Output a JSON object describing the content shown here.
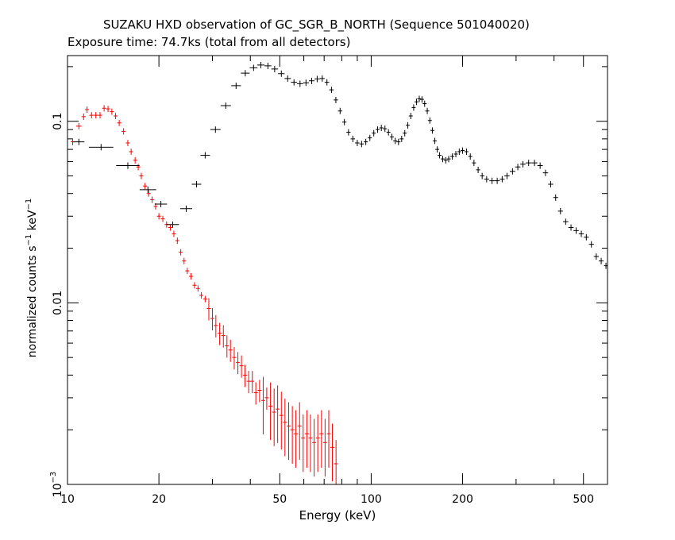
{
  "chart_data": {
    "type": "scatter",
    "title": "SUZAKU HXD observation of GC_SGR_B_NORTH (Sequence 501040020)",
    "subtitle": "Exposure time: 74.7ks (total from all detectors)",
    "xlabel": "Energy (keV)",
    "ylabel_text": "normalized counts s",
    "ylabel_exp1": "−1",
    "ylabel_mid": " keV",
    "ylabel_exp2": "−1",
    "xscale": "log",
    "yscale": "log",
    "xlim": [
      10,
      600
    ],
    "ylim": [
      0.001,
      0.23
    ],
    "x_ticks": [
      {
        "value": 10,
        "label": "10"
      },
      {
        "value": 20,
        "label": "20"
      },
      {
        "value": 50,
        "label": "50"
      },
      {
        "value": 100,
        "label": "100"
      },
      {
        "value": 200,
        "label": "200"
      },
      {
        "value": 500,
        "label": "500"
      }
    ],
    "y_ticks": [
      {
        "value": 0.1,
        "label": "0.1"
      },
      {
        "value": 0.01,
        "label": "0.01"
      },
      {
        "value": 0.001,
        "label": "10",
        "exp": "−3"
      }
    ],
    "series": [
      {
        "color": "#ff0000",
        "points": [
          [
            10.4,
            0.077
          ],
          [
            10.9,
            0.094
          ],
          [
            11.3,
            0.106
          ],
          [
            11.6,
            0.116
          ],
          [
            12.0,
            0.108
          ],
          [
            12.4,
            0.108
          ],
          [
            12.8,
            0.108
          ],
          [
            13.2,
            0.118
          ],
          [
            13.6,
            0.117
          ],
          [
            14.0,
            0.113
          ],
          [
            14.4,
            0.107
          ],
          [
            14.8,
            0.098
          ],
          [
            15.3,
            0.088
          ],
          [
            15.8,
            0.076
          ],
          [
            16.2,
            0.068
          ],
          [
            16.7,
            0.061
          ],
          [
            17.1,
            0.056
          ],
          [
            17.5,
            0.05
          ],
          [
            18.0,
            0.044
          ],
          [
            18.5,
            0.04
          ],
          [
            19.0,
            0.037
          ],
          [
            19.5,
            0.034
          ],
          [
            20.0,
            0.03
          ],
          [
            20.6,
            0.029
          ],
          [
            21.2,
            0.027
          ],
          [
            21.8,
            0.026
          ],
          [
            22.4,
            0.024
          ],
          [
            23.0,
            0.022
          ],
          [
            23.6,
            0.019
          ],
          [
            24.2,
            0.017
          ],
          [
            24.8,
            0.015
          ],
          [
            25.5,
            0.014
          ],
          [
            26.2,
            0.0125
          ],
          [
            26.9,
            0.012
          ],
          [
            27.6,
            0.011
          ],
          [
            28.4,
            0.0105
          ],
          [
            29.2,
            0.0093
          ],
          [
            30.0,
            0.0082
          ],
          [
            30.8,
            0.0075
          ],
          [
            31.7,
            0.0068
          ],
          [
            32.6,
            0.0066
          ],
          [
            33.5,
            0.0058
          ],
          [
            34.4,
            0.0055
          ],
          [
            35.4,
            0.005
          ],
          [
            36.4,
            0.0047
          ],
          [
            37.4,
            0.0045
          ],
          [
            38.4,
            0.004
          ],
          [
            39.5,
            0.0037
          ],
          [
            40.6,
            0.0037
          ],
          [
            41.7,
            0.0032
          ],
          [
            42.9,
            0.0033
          ],
          [
            44.1,
            0.0029
          ],
          [
            45.3,
            0.003
          ],
          [
            46.6,
            0.0027
          ],
          [
            47.9,
            0.0025
          ],
          [
            49.2,
            0.0026
          ],
          [
            50.6,
            0.0024
          ],
          [
            52.0,
            0.0022
          ],
          [
            53.5,
            0.0021
          ],
          [
            55.0,
            0.002
          ],
          [
            56.5,
            0.0019
          ],
          [
            58.1,
            0.0021
          ],
          [
            59.7,
            0.0018
          ],
          [
            61.4,
            0.0019
          ],
          [
            63.1,
            0.0018
          ],
          [
            64.9,
            0.0017
          ],
          [
            66.7,
            0.0018
          ],
          [
            68.6,
            0.0019
          ],
          [
            70.5,
            0.0017
          ],
          [
            72.5,
            0.0019
          ],
          [
            74.5,
            0.0016
          ],
          [
            76.6,
            0.0013
          ],
          [
            78.7,
            0.0009
          ]
        ]
      },
      {
        "color": "#000000",
        "points": [
          [
            10.9,
            0.077
          ],
          [
            12.9,
            0.072
          ],
          [
            15.8,
            0.057
          ],
          [
            18.4,
            0.042
          ],
          [
            20.3,
            0.035
          ],
          [
            22.2,
            0.027
          ],
          [
            24.6,
            0.033
          ],
          [
            26.6,
            0.045
          ],
          [
            28.4,
            0.065
          ],
          [
            30.7,
            0.09
          ],
          [
            33.2,
            0.122
          ],
          [
            35.9,
            0.157
          ],
          [
            38.5,
            0.184
          ],
          [
            41.0,
            0.197
          ],
          [
            43.3,
            0.204
          ],
          [
            45.7,
            0.202
          ],
          [
            48.1,
            0.194
          ],
          [
            50.6,
            0.183
          ],
          [
            53.1,
            0.172
          ],
          [
            55.7,
            0.164
          ],
          [
            58.3,
            0.161
          ],
          [
            61.0,
            0.163
          ],
          [
            63.7,
            0.167
          ],
          [
            66.4,
            0.171
          ],
          [
            69.0,
            0.172
          ],
          [
            71.5,
            0.164
          ],
          [
            74.0,
            0.149
          ],
          [
            76.5,
            0.131
          ],
          [
            79.0,
            0.114
          ],
          [
            81.6,
            0.099
          ],
          [
            84.2,
            0.087
          ],
          [
            87.0,
            0.08
          ],
          [
            90.0,
            0.076
          ],
          [
            93.0,
            0.075
          ],
          [
            96.0,
            0.077
          ],
          [
            99.0,
            0.081
          ],
          [
            102.0,
            0.086
          ],
          [
            105.0,
            0.09
          ],
          [
            108.0,
            0.092
          ],
          [
            111.0,
            0.091
          ],
          [
            114.0,
            0.087
          ],
          [
            117.0,
            0.082
          ],
          [
            120.0,
            0.078
          ],
          [
            123.0,
            0.077
          ],
          [
            126.0,
            0.08
          ],
          [
            129.0,
            0.086
          ],
          [
            132.0,
            0.095
          ],
          [
            135.0,
            0.107
          ],
          [
            138.0,
            0.119
          ],
          [
            141.0,
            0.128
          ],
          [
            144.0,
            0.133
          ],
          [
            147.0,
            0.132
          ],
          [
            150.0,
            0.125
          ],
          [
            153.0,
            0.114
          ],
          [
            156.0,
            0.101
          ],
          [
            159.0,
            0.089
          ],
          [
            162.0,
            0.078
          ],
          [
            165.0,
            0.07
          ],
          [
            168.0,
            0.065
          ],
          [
            172.0,
            0.062
          ],
          [
            176.0,
            0.061
          ],
          [
            180.0,
            0.062
          ],
          [
            185.0,
            0.064
          ],
          [
            190.0,
            0.066
          ],
          [
            195.0,
            0.068
          ],
          [
            200.0,
            0.069
          ],
          [
            206.0,
            0.068
          ],
          [
            212.0,
            0.064
          ],
          [
            218.0,
            0.059
          ],
          [
            225.0,
            0.054
          ],
          [
            232.0,
            0.05
          ],
          [
            240.0,
            0.048
          ],
          [
            250.0,
            0.047
          ],
          [
            260.0,
            0.047
          ],
          [
            270.0,
            0.048
          ],
          [
            280.0,
            0.05
          ],
          [
            292.0,
            0.053
          ],
          [
            304.0,
            0.056
          ],
          [
            316.0,
            0.058
          ],
          [
            330.0,
            0.059
          ],
          [
            345.0,
            0.059
          ],
          [
            360.0,
            0.057
          ],
          [
            375.0,
            0.052
          ],
          [
            390.0,
            0.045
          ],
          [
            405.0,
            0.038
          ],
          [
            420.0,
            0.032
          ],
          [
            437.0,
            0.028
          ],
          [
            455.0,
            0.026
          ],
          [
            473.0,
            0.025
          ],
          [
            492.0,
            0.024
          ],
          [
            511.0,
            0.023
          ],
          [
            531.0,
            0.021
          ],
          [
            551.0,
            0.018
          ],
          [
            572.0,
            0.017
          ],
          [
            593.0,
            0.016
          ]
        ]
      }
    ]
  }
}
